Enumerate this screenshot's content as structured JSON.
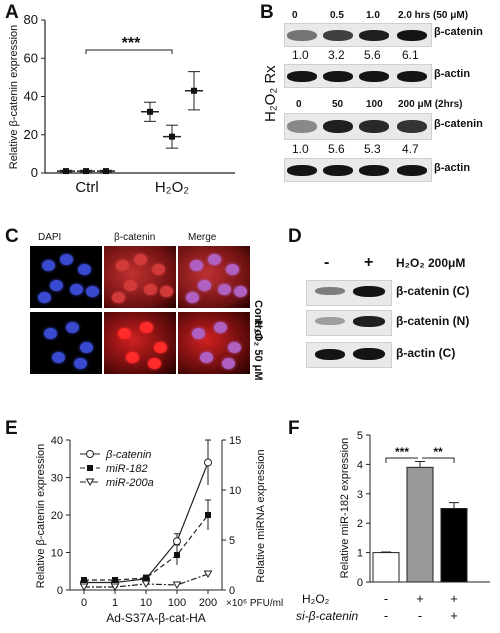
{
  "panels": {
    "A": "A",
    "B": "B",
    "C": "C",
    "D": "D",
    "E": "E",
    "F": "F"
  },
  "panelA": {
    "ylabel": "Relative β-catenin expression",
    "yticks": [
      "0",
      "20",
      "40",
      "60",
      "80"
    ],
    "groups": [
      "Ctrl",
      "H₂O₂"
    ],
    "sig": "***",
    "chart_data": {
      "type": "scatter",
      "ylim": [
        0,
        80
      ],
      "points": [
        {
          "group": "Ctrl",
          "mean": 1,
          "err": 0.4
        },
        {
          "group": "Ctrl",
          "mean": 1,
          "err": 0.4
        },
        {
          "group": "Ctrl",
          "mean": 1,
          "err": 0.4
        },
        {
          "group": "H₂O₂",
          "mean": 32,
          "err": 5
        },
        {
          "group": "H₂O₂",
          "mean": 19,
          "err": 6
        },
        {
          "group": "H₂O₂",
          "mean": 43,
          "err": 10
        }
      ]
    }
  },
  "panelB": {
    "top": {
      "times": [
        "0",
        "0.5",
        "1.0",
        "2.0 hrs (50 μM)"
      ],
      "values": [
        "1.0",
        "3.2",
        "5.6",
        "6.1"
      ],
      "band1": "β-catenin",
      "band2": "β-actin",
      "intensity": [
        0.55,
        0.8,
        0.95,
        1.0
      ]
    },
    "side": "H₂O₂ Rx",
    "bottom": {
      "doses": [
        "0",
        "50",
        "100",
        "200 μM (2hrs)"
      ],
      "values": [
        "1.0",
        "5.6",
        "5.3",
        "4.7"
      ],
      "band1": "β-catenin",
      "band2": "β-actin",
      "intensity": [
        0.45,
        0.95,
        0.9,
        0.85
      ]
    }
  },
  "panelC": {
    "cols": [
      "DAPI",
      "β-catenin",
      "Merge"
    ],
    "rows": [
      "Control",
      "H₂O₂ 50 μM"
    ]
  },
  "panelD": {
    "minus": "-",
    "plus": "+",
    "treatment": "H₂O₂ 200μM",
    "bands": [
      "β-catenin (C)",
      "β-catenin (N)",
      "β-actin (C)"
    ]
  },
  "panelE": {
    "ylabel_left": "Relative β-catenin expression",
    "ylabel_right": "Relative miRNA expression",
    "xlabel": "Ad-S37A-β-cat-HA",
    "xunit": "×10⁶ PFU/ml",
    "legend": [
      "β-catenin",
      "miR-182",
      "miR-200a"
    ],
    "chart_data": {
      "type": "line",
      "categories": [
        "0",
        "1",
        "10",
        "100",
        "200"
      ],
      "ylim_left": [
        0,
        40
      ],
      "ylim_right": [
        0,
        15
      ],
      "series": [
        {
          "name": "β-catenin",
          "axis": "left",
          "values": [
            2,
            2,
            3,
            13,
            34
          ],
          "err": [
            0.5,
            0.5,
            0.8,
            2,
            6
          ],
          "style": "open-circle solid"
        },
        {
          "name": "miR-182",
          "axis": "right",
          "values": [
            1,
            1,
            1.2,
            3.5,
            7.5
          ],
          "err": [
            0.2,
            0.2,
            0.3,
            1,
            1.5
          ],
          "style": "filled-square dashed"
        },
        {
          "name": "miR-200a",
          "axis": "right",
          "values": [
            0.3,
            0.3,
            0.6,
            0.5,
            1.6
          ],
          "err": [
            0.1,
            0.1,
            0.2,
            0.2,
            0.3
          ],
          "style": "open-triangle dashdot"
        }
      ],
      "yticks_left": [
        "0",
        "10",
        "20",
        "30",
        "40"
      ],
      "yticks_right": [
        "0",
        "5",
        "10",
        "15"
      ]
    }
  },
  "panelF": {
    "ylabel": "Relative miR-182 expression",
    "row1label": "H₂O₂",
    "row2label": "si-β-catenin",
    "row1": [
      "-",
      "+",
      "+"
    ],
    "row2": [
      "-",
      "-",
      "+"
    ],
    "sig": [
      "***",
      "**"
    ],
    "yticks": [
      "0",
      "1",
      "2",
      "3",
      "4",
      "5"
    ],
    "chart_data": {
      "type": "bar",
      "categories": [
        "control",
        "H₂O₂",
        "H₂O₂ + si-β-catenin"
      ],
      "values": [
        1.0,
        3.9,
        2.5
      ],
      "err": [
        0.02,
        0.2,
        0.2
      ],
      "colors": [
        "#ffffff",
        "#999999",
        "#000000"
      ],
      "ylim": [
        0,
        5
      ]
    }
  }
}
